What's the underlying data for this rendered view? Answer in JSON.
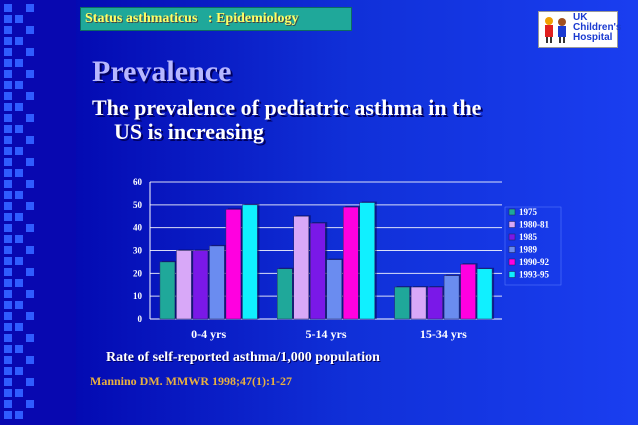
{
  "header": {
    "label": "Status asthmaticus   : Epidemiology"
  },
  "logo": {
    "line1": "UK",
    "line2": "Children's",
    "line3": "Hospital"
  },
  "slide": {
    "title": "Prevalence",
    "subtitle_line1": "The prevalence of pediatric asthma in the",
    "subtitle_line2": "US is increasing",
    "caption": "Rate of self-reported asthma/1,000 population",
    "source": "Mannino DM. MMWR 1998;47(1):1-27"
  },
  "colors": {
    "accent_header": "#1fa89a",
    "title_color": "#b7b7ff",
    "source_color": "#e8b040"
  },
  "chart_data": {
    "type": "bar",
    "categories": [
      "0-4 yrs",
      "5-14 yrs",
      "15-34 yrs"
    ],
    "ylim": [
      0,
      60
    ],
    "yticks": [
      0,
      10,
      20,
      30,
      40,
      50,
      60
    ],
    "grid": true,
    "legend_position": "right",
    "series": [
      {
        "name": "1975",
        "color": "#1fa89a",
        "values": [
          25,
          22,
          14
        ]
      },
      {
        "name": "1980-81",
        "color": "#d8a8f8",
        "values": [
          30,
          45,
          14
        ]
      },
      {
        "name": "1985",
        "color": "#7a18e8",
        "values": [
          30,
          42,
          14
        ]
      },
      {
        "name": "1989",
        "color": "#6a8cf0",
        "values": [
          32,
          26,
          19
        ]
      },
      {
        "name": "1990-92",
        "color": "#ff00e0",
        "values": [
          48,
          49,
          24
        ]
      },
      {
        "name": "1993-95",
        "color": "#10f0ff",
        "values": [
          50,
          51,
          22
        ]
      }
    ]
  }
}
